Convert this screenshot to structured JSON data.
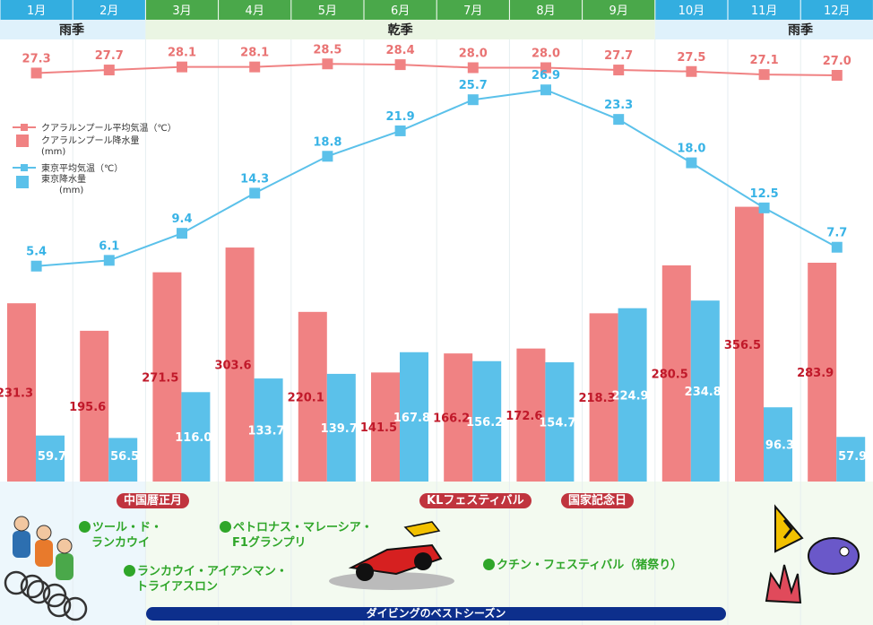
{
  "chart_data": {
    "type": "bar+line",
    "months": [
      "1月",
      "2月",
      "3月",
      "4月",
      "5月",
      "6月",
      "7月",
      "8月",
      "9月",
      "10月",
      "11月",
      "12月"
    ],
    "season_labels": {
      "rainy_start": "雨季",
      "dry": "乾季",
      "rainy_end": "雨季"
    },
    "dry_season_months": [
      3,
      4,
      5,
      6,
      7,
      8,
      9
    ],
    "series": [
      {
        "name": "クアラルンプール平均気温（℃）",
        "kind": "line",
        "color": "#f08283",
        "values": [
          27.3,
          27.7,
          28.1,
          28.1,
          28.5,
          28.4,
          28.0,
          28.0,
          27.7,
          27.5,
          27.1,
          27.0
        ]
      },
      {
        "name": "東京平均気温（℃）",
        "kind": "line",
        "color": "#5bc1ea",
        "values": [
          5.4,
          6.1,
          9.4,
          14.3,
          18.8,
          21.9,
          25.7,
          26.9,
          23.3,
          18.0,
          12.5,
          7.7
        ]
      },
      {
        "name": "クアラルンプール降水量",
        "unit": "(mm)",
        "kind": "bar",
        "color": "#f08283",
        "values": [
          231.3,
          195.6,
          271.5,
          303.6,
          220.1,
          141.5,
          166.2,
          172.6,
          218.3,
          280.5,
          356.5,
          283.9
        ]
      },
      {
        "name": "東京降水量",
        "unit": "(mm)",
        "kind": "bar",
        "color": "#5bc1ea",
        "values": [
          59.7,
          56.5,
          116.0,
          133.7,
          139.7,
          167.8,
          156.2,
          154.7,
          224.9,
          234.8,
          96.3,
          57.9
        ]
      }
    ],
    "legend_position": "left",
    "events": [
      {
        "label": "中国暦正月",
        "style": "red"
      },
      {
        "label": "KLフェスティバル",
        "style": "red"
      },
      {
        "label": "国家記念日",
        "style": "red"
      },
      {
        "label": "ツール・ド・ランカウイ",
        "lines": [
          "ツール・ド・",
          "ランカウイ"
        ],
        "style": "green"
      },
      {
        "label": "ペトロナス・マレーシア・F1グランプリ",
        "lines": [
          "ペトロナス・マレーシア・",
          "F1グランプリ"
        ],
        "style": "green"
      },
      {
        "label": "ランカウイ・アイアンマン・トライアスロン",
        "lines": [
          "ランカウイ・アイアンマン・",
          "トライアスロン"
        ],
        "style": "green"
      },
      {
        "label": "クチン・フェスティバル（猪祭り）",
        "style": "green"
      }
    ],
    "diving_season": "ダイビングのベストシーズン",
    "illustrations": [
      "cyclists-illustration",
      "f1-car-illustration",
      "tropical-fish-illustration"
    ]
  }
}
